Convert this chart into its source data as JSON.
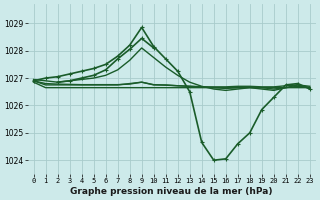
{
  "title": "Graphe pression niveau de la mer (hPa)",
  "background_color": "#cdeaea",
  "grid_color": "#a8cccc",
  "line_color": "#1a5c2a",
  "xlim": [
    -0.5,
    23.5
  ],
  "ylim": [
    1023.5,
    1029.7
  ],
  "yticks": [
    1024,
    1025,
    1026,
    1027,
    1028,
    1029
  ],
  "xticks": [
    0,
    1,
    2,
    3,
    4,
    5,
    6,
    7,
    8,
    9,
    10,
    11,
    12,
    13,
    14,
    15,
    16,
    17,
    18,
    19,
    20,
    21,
    22,
    23
  ],
  "series": [
    {
      "x": [
        0,
        1,
        2,
        3,
        4,
        5,
        6,
        7,
        8,
        9,
        10,
        11,
        12,
        13,
        14,
        15,
        16,
        17,
        18,
        19,
        20,
        21,
        22,
        23
      ],
      "y": [
        1026.85,
        1026.65,
        1026.65,
        1026.65,
        1026.65,
        1026.65,
        1026.65,
        1026.65,
        1026.65,
        1026.65,
        1026.65,
        1026.65,
        1026.65,
        1026.65,
        1026.65,
        1026.65,
        1026.65,
        1026.65,
        1026.65,
        1026.65,
        1026.65,
        1026.65,
        1026.65,
        1026.65
      ],
      "marker": null,
      "linewidth": 1.0
    },
    {
      "x": [
        0,
        1,
        2,
        3,
        4,
        5,
        6,
        7,
        8,
        9,
        10,
        11,
        12,
        13,
        14,
        15,
        16,
        17,
        18,
        19,
        20,
        21,
        22,
        23
      ],
      "y": [
        1026.9,
        1026.75,
        1026.75,
        1026.75,
        1026.75,
        1026.75,
        1026.75,
        1026.75,
        1026.8,
        1026.85,
        1026.75,
        1026.75,
        1026.72,
        1026.7,
        1026.68,
        1026.68,
        1026.68,
        1026.7,
        1026.7,
        1026.68,
        1026.68,
        1026.72,
        1026.75,
        1026.7
      ],
      "marker": null,
      "linewidth": 1.0
    },
    {
      "x": [
        0,
        1,
        2,
        3,
        4,
        5,
        6,
        7,
        8,
        9,
        10,
        11,
        12,
        13,
        14,
        15,
        16,
        17,
        18,
        19,
        20,
        21,
        22,
        23
      ],
      "y": [
        1026.9,
        1026.8,
        1026.78,
        1026.77,
        1026.76,
        1026.76,
        1026.76,
        1026.76,
        1026.78,
        1026.85,
        1026.76,
        1026.74,
        1026.72,
        1026.7,
        1026.68,
        1026.65,
        1026.62,
        1026.65,
        1026.66,
        1026.65,
        1026.6,
        1026.65,
        1026.7,
        1026.65
      ],
      "marker": null,
      "linewidth": 1.0
    },
    {
      "x": [
        0,
        1,
        2,
        3,
        4,
        5,
        6,
        7,
        8,
        9,
        10,
        11,
        12,
        13,
        14,
        15,
        16,
        17,
        18,
        19,
        20,
        21,
        22,
        23
      ],
      "y": [
        1026.95,
        1026.9,
        1026.85,
        1026.9,
        1026.95,
        1027.0,
        1027.1,
        1027.3,
        1027.65,
        1028.1,
        1027.75,
        1027.4,
        1027.1,
        1026.85,
        1026.7,
        1026.6,
        1026.55,
        1026.6,
        1026.65,
        1026.6,
        1026.55,
        1026.65,
        1026.75,
        1026.65
      ],
      "marker": null,
      "linewidth": 1.0
    },
    {
      "x": [
        0,
        1,
        2,
        3,
        4,
        5,
        6,
        7,
        8,
        9,
        10,
        11,
        12,
        13,
        14,
        15,
        16,
        17,
        18,
        19,
        20,
        21,
        22,
        23
      ],
      "y": [
        1026.9,
        1027.0,
        1027.05,
        1027.15,
        1027.25,
        1027.35,
        1027.5,
        1027.8,
        1028.2,
        1028.85,
        1028.15,
        1027.7,
        1027.25,
        1026.5,
        1024.65,
        1024.0,
        1024.05,
        1024.6,
        1025.0,
        1025.85,
        1026.3,
        1026.75,
        1026.8,
        1026.6
      ],
      "marker": "+",
      "linewidth": 1.2
    },
    {
      "x": [
        2,
        3,
        4,
        5,
        6,
        7,
        8,
        9,
        10
      ],
      "y": [
        1026.85,
        1026.9,
        1027.0,
        1027.1,
        1027.3,
        1027.7,
        1028.05,
        1028.45,
        1028.1
      ],
      "marker": "+",
      "linewidth": 1.2
    }
  ]
}
